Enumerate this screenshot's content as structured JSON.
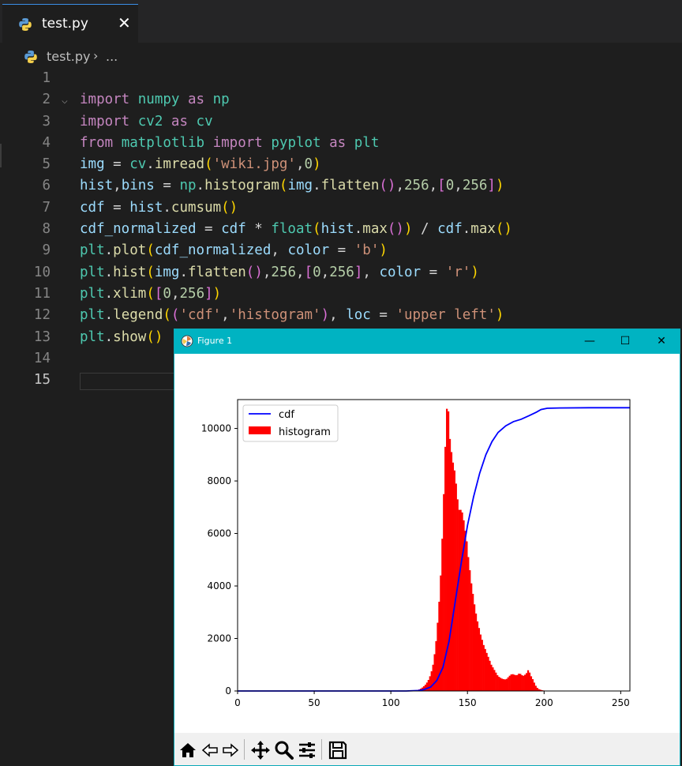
{
  "editor": {
    "tab": {
      "filename": "test.py",
      "close_glyph": "✕",
      "icon": "python-icon"
    },
    "breadcrumb": {
      "file": "test.py",
      "separator": "›",
      "more": "..."
    },
    "active_line": 15,
    "lines": [
      {
        "n": "1",
        "tokens": []
      },
      {
        "n": "2",
        "fold": "⌵",
        "tokens": [
          [
            "kw",
            "import"
          ],
          [
            "pl",
            " "
          ],
          [
            "mod",
            "numpy"
          ],
          [
            "pl",
            " "
          ],
          [
            "kw",
            "as"
          ],
          [
            "pl",
            " "
          ],
          [
            "mod",
            "np"
          ]
        ]
      },
      {
        "n": "3",
        "tokens": [
          [
            "kw",
            "import"
          ],
          [
            "pl",
            " "
          ],
          [
            "mod",
            "cv2"
          ],
          [
            "pl",
            " "
          ],
          [
            "kw",
            "as"
          ],
          [
            "pl",
            " "
          ],
          [
            "mod",
            "cv"
          ]
        ]
      },
      {
        "n": "4",
        "tokens": [
          [
            "kw",
            "from"
          ],
          [
            "pl",
            " "
          ],
          [
            "mod",
            "matplotlib"
          ],
          [
            "pl",
            " "
          ],
          [
            "kw",
            "import"
          ],
          [
            "pl",
            " "
          ],
          [
            "mod",
            "pyplot"
          ],
          [
            "pl",
            " "
          ],
          [
            "kw",
            "as"
          ],
          [
            "pl",
            " "
          ],
          [
            "mod",
            "plt"
          ]
        ]
      },
      {
        "n": "5",
        "tokens": [
          [
            "var",
            "img"
          ],
          [
            "pl",
            " = "
          ],
          [
            "mod",
            "cv"
          ],
          [
            "pl",
            "."
          ],
          [
            "fn",
            "imread"
          ],
          [
            "p1",
            "("
          ],
          [
            "str",
            "'wiki.jpg'"
          ],
          [
            "pl",
            ","
          ],
          [
            "num",
            "0"
          ],
          [
            "p1",
            ")"
          ]
        ]
      },
      {
        "n": "6",
        "tokens": [
          [
            "var",
            "hist"
          ],
          [
            "pl",
            ","
          ],
          [
            "var",
            "bins"
          ],
          [
            "pl",
            " = "
          ],
          [
            "mod",
            "np"
          ],
          [
            "pl",
            "."
          ],
          [
            "fn",
            "histogram"
          ],
          [
            "p1",
            "("
          ],
          [
            "var",
            "img"
          ],
          [
            "pl",
            "."
          ],
          [
            "fn",
            "flatten"
          ],
          [
            "p2",
            "()"
          ],
          [
            "pl",
            ","
          ],
          [
            "num",
            "256"
          ],
          [
            "pl",
            ","
          ],
          [
            "p2",
            "["
          ],
          [
            "num",
            "0"
          ],
          [
            "pl",
            ","
          ],
          [
            "num",
            "256"
          ],
          [
            "p2",
            "]"
          ],
          [
            "p1",
            ")"
          ]
        ]
      },
      {
        "n": "7",
        "tokens": [
          [
            "var",
            "cdf"
          ],
          [
            "pl",
            " = "
          ],
          [
            "var",
            "hist"
          ],
          [
            "pl",
            "."
          ],
          [
            "fn",
            "cumsum"
          ],
          [
            "p1",
            "()"
          ]
        ]
      },
      {
        "n": "8",
        "tokens": [
          [
            "var",
            "cdf_normalized"
          ],
          [
            "pl",
            " = "
          ],
          [
            "var",
            "cdf"
          ],
          [
            "pl",
            " * "
          ],
          [
            "mod",
            "float"
          ],
          [
            "p1",
            "("
          ],
          [
            "var",
            "hist"
          ],
          [
            "pl",
            "."
          ],
          [
            "fn",
            "max"
          ],
          [
            "p2",
            "()"
          ],
          [
            "p1",
            ")"
          ],
          [
            "pl",
            " / "
          ],
          [
            "var",
            "cdf"
          ],
          [
            "pl",
            "."
          ],
          [
            "fn",
            "max"
          ],
          [
            "p1",
            "()"
          ]
        ]
      },
      {
        "n": "9",
        "tokens": [
          [
            "mod",
            "plt"
          ],
          [
            "pl",
            "."
          ],
          [
            "fn",
            "plot"
          ],
          [
            "p1",
            "("
          ],
          [
            "var",
            "cdf_normalized"
          ],
          [
            "pl",
            ", "
          ],
          [
            "var",
            "color"
          ],
          [
            "pl",
            " = "
          ],
          [
            "str",
            "'b'"
          ],
          [
            "p1",
            ")"
          ]
        ]
      },
      {
        "n": "10",
        "tokens": [
          [
            "mod",
            "plt"
          ],
          [
            "pl",
            "."
          ],
          [
            "fn",
            "hist"
          ],
          [
            "p1",
            "("
          ],
          [
            "var",
            "img"
          ],
          [
            "pl",
            "."
          ],
          [
            "fn",
            "flatten"
          ],
          [
            "p2",
            "()"
          ],
          [
            "pl",
            ","
          ],
          [
            "num",
            "256"
          ],
          [
            "pl",
            ","
          ],
          [
            "p2",
            "["
          ],
          [
            "num",
            "0"
          ],
          [
            "pl",
            ","
          ],
          [
            "num",
            "256"
          ],
          [
            "p2",
            "]"
          ],
          [
            "pl",
            ", "
          ],
          [
            "var",
            "color"
          ],
          [
            "pl",
            " = "
          ],
          [
            "str",
            "'r'"
          ],
          [
            "p1",
            ")"
          ]
        ]
      },
      {
        "n": "11",
        "tokens": [
          [
            "mod",
            "plt"
          ],
          [
            "pl",
            "."
          ],
          [
            "fn",
            "xlim"
          ],
          [
            "p1",
            "("
          ],
          [
            "p2",
            "["
          ],
          [
            "num",
            "0"
          ],
          [
            "pl",
            ","
          ],
          [
            "num",
            "256"
          ],
          [
            "p2",
            "]"
          ],
          [
            "p1",
            ")"
          ]
        ]
      },
      {
        "n": "12",
        "tokens": [
          [
            "mod",
            "plt"
          ],
          [
            "pl",
            "."
          ],
          [
            "fn",
            "legend"
          ],
          [
            "p1",
            "("
          ],
          [
            "p2",
            "("
          ],
          [
            "str",
            "'cdf'"
          ],
          [
            "pl",
            ","
          ],
          [
            "str",
            "'histogram'"
          ],
          [
            "p2",
            ")"
          ],
          [
            "pl",
            ", "
          ],
          [
            "var",
            "loc"
          ],
          [
            "pl",
            " = "
          ],
          [
            "str",
            "'upper left'"
          ],
          [
            "p1",
            ")"
          ]
        ]
      },
      {
        "n": "13",
        "tokens": [
          [
            "mod",
            "plt"
          ],
          [
            "pl",
            "."
          ],
          [
            "fn",
            "show"
          ],
          [
            "p1",
            "()"
          ]
        ]
      },
      {
        "n": "14",
        "tokens": []
      },
      {
        "n": "15",
        "tokens": []
      }
    ]
  },
  "figure_window": {
    "title": "Figure 1",
    "controls": {
      "minimize": "—",
      "maximize": "☐",
      "close": "✕"
    },
    "toolbar": [
      "home-icon",
      "back-icon",
      "forward-icon",
      "pan-icon",
      "zoom-icon",
      "configure-subplots-icon",
      "save-icon"
    ]
  },
  "chart_data": {
    "type": "bar",
    "title": "",
    "xlabel": "",
    "ylabel": "",
    "xlim": [
      0,
      256
    ],
    "ylim": [
      0,
      11100
    ],
    "xticks": [
      0,
      50,
      100,
      150,
      200,
      250
    ],
    "yticks": [
      0,
      2000,
      4000,
      6000,
      8000,
      10000
    ],
    "grid": false,
    "legend": {
      "placement": "upper left",
      "entries": [
        "cdf",
        "histogram"
      ]
    },
    "colors": {
      "cdf": "#0000ff",
      "histogram": "#ff0000"
    },
    "series": [
      {
        "name": "histogram",
        "type": "bar",
        "x_start": 115,
        "values": [
          10,
          20,
          40,
          60,
          90,
          130,
          180,
          240,
          320,
          420,
          560,
          750,
          1000,
          1400,
          1900,
          2600,
          3400,
          4400,
          5800,
          7500,
          9300,
          10750,
          10650,
          9600,
          9100,
          8700,
          8400,
          7900,
          7300,
          6900,
          6900,
          6800,
          6500,
          6100,
          5700,
          5100,
          4600,
          4100,
          3700,
          3300,
          2950,
          2650,
          2400,
          2150,
          1950,
          1750,
          1600,
          1450,
          1300,
          1150,
          1000,
          900,
          800,
          700,
          600,
          540,
          500,
          470,
          450,
          440,
          460,
          520,
          580,
          630,
          640,
          620,
          600,
          610,
          660,
          650,
          600,
          580,
          620,
          680,
          790,
          700,
          560,
          450,
          320,
          200,
          120,
          70,
          50,
          30,
          20,
          10
        ]
      },
      {
        "name": "cdf",
        "type": "line",
        "x": [
          0,
          110,
          118,
          122,
          126,
          130,
          134,
          138,
          142,
          146,
          150,
          154,
          158,
          162,
          166,
          170,
          175,
          180,
          185,
          190,
          195,
          198,
          202,
          210,
          230,
          256
        ],
        "y": [
          0,
          0,
          20,
          60,
          150,
          400,
          900,
          1900,
          3400,
          4900,
          6300,
          7400,
          8300,
          9000,
          9500,
          9850,
          10100,
          10260,
          10350,
          10480,
          10620,
          10720,
          10770,
          10780,
          10790,
          10790
        ]
      }
    ]
  }
}
